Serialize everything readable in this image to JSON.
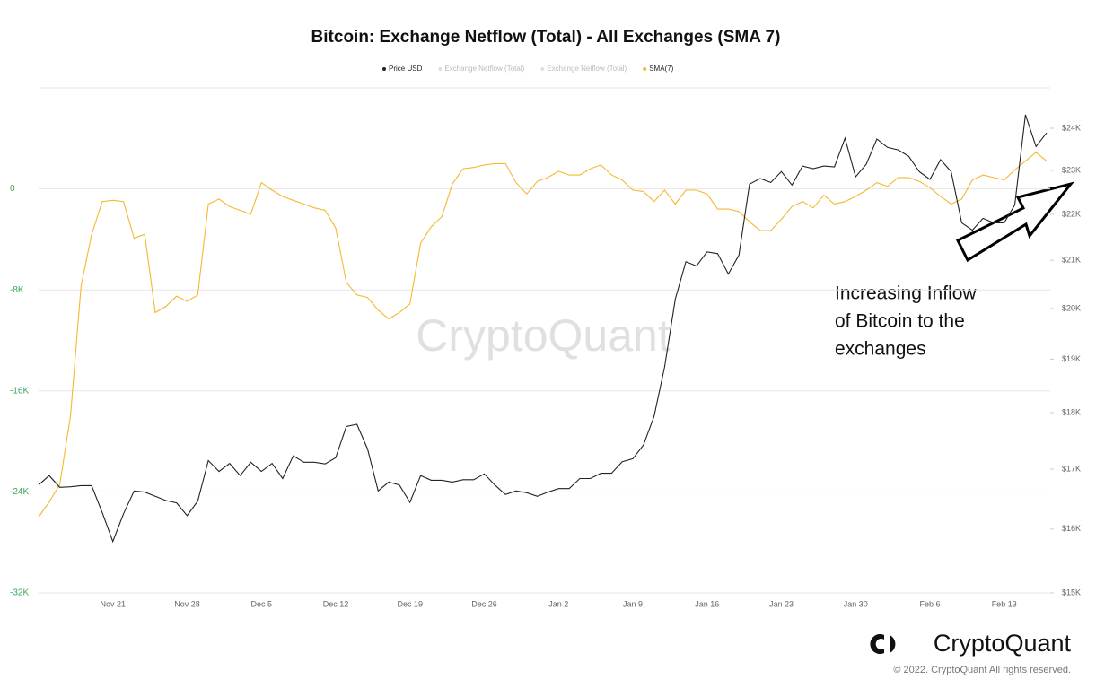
{
  "chart_data": {
    "type": "line",
    "title": "Bitcoin: Exchange Netflow (Total) - All Exchanges (SMA 7)",
    "categories": [
      null,
      null,
      null,
      null,
      null,
      null,
      null,
      "Nov 21",
      null,
      null,
      null,
      null,
      null,
      null,
      "Nov 28",
      null,
      null,
      null,
      null,
      null,
      null,
      "Dec 5",
      null,
      null,
      null,
      null,
      null,
      null,
      "Dec 12",
      null,
      null,
      null,
      null,
      null,
      null,
      "Dec 19",
      null,
      null,
      null,
      null,
      null,
      null,
      "Dec 26",
      null,
      null,
      null,
      null,
      null,
      null,
      "Jan 2",
      null,
      null,
      null,
      null,
      null,
      null,
      "Jan 9",
      null,
      null,
      null,
      null,
      null,
      null,
      "Jan 16",
      null,
      null,
      null,
      null,
      null,
      null,
      "Jan 23",
      null,
      null,
      null,
      null,
      null,
      null,
      "Jan 30",
      null,
      null,
      null,
      null,
      null,
      null,
      "Feb 6",
      null,
      null,
      null,
      null,
      null,
      null,
      "Feb 13",
      null,
      null,
      null,
      null
    ],
    "series": [
      {
        "name": "Price USD",
        "color": "#222222",
        "axis": "y2",
        "values": [
          16730,
          16890,
          16690,
          16700,
          16720,
          16720,
          16270,
          15800,
          16250,
          16630,
          16610,
          16540,
          16470,
          16430,
          16220,
          16460,
          17150,
          16960,
          17100,
          16890,
          17120,
          16960,
          17100,
          16840,
          17230,
          17120,
          17120,
          17090,
          17200,
          17750,
          17790,
          17350,
          16630,
          16780,
          16730,
          16440,
          16890,
          16810,
          16810,
          16780,
          16820,
          16820,
          16920,
          16730,
          16570,
          16630,
          16600,
          16540,
          16610,
          16670,
          16670,
          16840,
          16840,
          16930,
          16930,
          17130,
          17180,
          17420,
          17930,
          18850,
          20190,
          20970,
          20880,
          21180,
          21140,
          20710,
          21110,
          22680,
          22810,
          22720,
          22970,
          22660,
          23100,
          23040,
          23100,
          23080,
          23760,
          22850,
          23140,
          23740,
          23540,
          23480,
          23330,
          22970,
          22790,
          23250,
          22970,
          21810,
          21650,
          21910,
          21810,
          21810,
          22210,
          24330,
          23560,
          23890
        ]
      },
      {
        "name": "Exchange Netflow (Total)",
        "color": "#c8c8c8",
        "visible": false
      },
      {
        "name": "Exchange Netflow (Total)",
        "color": "#c8c8c8",
        "visible": false
      },
      {
        "name": "SMA(7)",
        "color": "#f5b82e",
        "values": [
          -26000,
          -24800,
          -23400,
          -18000,
          -7700,
          -3600,
          -1000,
          -900,
          -1000,
          -3900,
          -3600,
          -9800,
          -9300,
          -8500,
          -8900,
          -8400,
          -1200,
          -800,
          -1400,
          -1700,
          -2000,
          500,
          -100,
          -600,
          -900,
          -1200,
          -1500,
          -1700,
          -3100,
          -7400,
          -8400,
          -8600,
          -9600,
          -10300,
          -9800,
          -9100,
          -4300,
          -3000,
          -2200,
          400,
          1600,
          1700,
          1900,
          2000,
          2000,
          500,
          -400,
          600,
          900,
          1400,
          1100,
          1100,
          1600,
          1900,
          1100,
          700,
          -100,
          -200,
          -1000,
          -100,
          -1200,
          -100,
          -100,
          -400,
          -1600,
          -1600,
          -1800,
          -2600,
          -3300,
          -3300,
          -2400,
          -1400,
          -1000,
          -1500,
          -500,
          -1200,
          -1000,
          -600,
          -100,
          500,
          200,
          900,
          900,
          600,
          100,
          -600,
          -1200,
          -800,
          700,
          1100,
          900,
          700,
          1500,
          2200,
          2900,
          2200
        ]
      }
    ],
    "ylim": [
      -32000,
      8000
    ],
    "yticks": [
      {
        "value": 0,
        "label": "0"
      },
      {
        "value": -8000,
        "label": "-8K"
      },
      {
        "value": -16000,
        "label": "-16K"
      },
      {
        "value": -24000,
        "label": "-24K"
      },
      {
        "value": -32000,
        "label": "-32K"
      }
    ],
    "y2lim": [
      15000,
      25000
    ],
    "y2log": true,
    "y2ticks": [
      {
        "value": 24000,
        "label": "$24K"
      },
      {
        "value": 23000,
        "label": "$23K"
      },
      {
        "value": 22000,
        "label": "$22K"
      },
      {
        "value": 21000,
        "label": "$21K"
      },
      {
        "value": 20000,
        "label": "$20K"
      },
      {
        "value": 19000,
        "label": "$19K"
      },
      {
        "value": 18000,
        "label": "$18K"
      },
      {
        "value": 17000,
        "label": "$17K"
      },
      {
        "value": 16000,
        "label": "$16K"
      },
      {
        "value": 15000,
        "label": "$15K"
      }
    ],
    "grid": true,
    "annotation": [
      "Increasing Inflow",
      "of Bitcoin to the",
      "exchanges"
    ],
    "watermark": "CryptoQuant",
    "brand": "CryptoQuant",
    "copyright": "© 2022. CryptoQuant All rights reserved."
  }
}
